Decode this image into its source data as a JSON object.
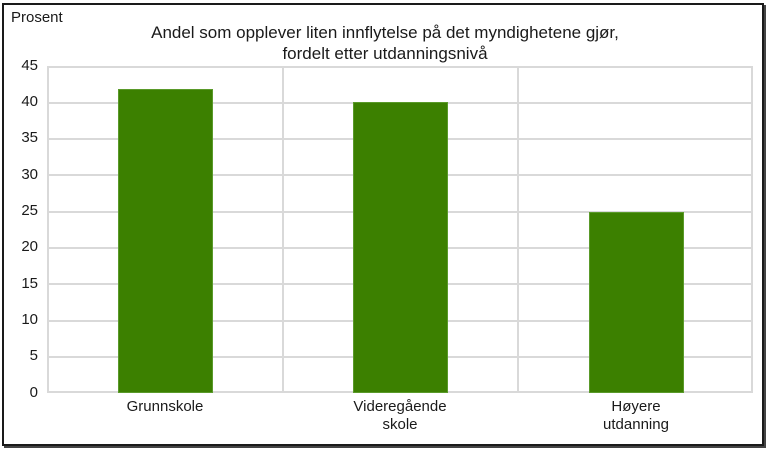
{
  "chart_data": {
    "type": "bar",
    "title": "Andel som opplever liten innflytelse på det myndighetene gjør, fordelt etter utdanningsnivå",
    "title_lines": [
      "Andel som opplever liten innflytelse på det myndighetene gjør,",
      "fordelt etter utdanningsnivå"
    ],
    "xlabel": "",
    "ylabel": "Prosent",
    "categories": [
      "Grunnskole",
      "Videregående skole",
      "Høyere utdanning"
    ],
    "category_lines": [
      [
        "Grunnskole"
      ],
      [
        "Videregående",
        "skole"
      ],
      [
        "Høyere",
        "utdanning"
      ]
    ],
    "values": [
      41.8,
      40.0,
      24.9
    ],
    "ylim": [
      0,
      45
    ],
    "yticks": [
      "45",
      "40",
      "35",
      "30",
      "25",
      "20",
      "15",
      "10",
      "5",
      "0"
    ],
    "grid": true,
    "legend": null,
    "bar_color": "#3c8000"
  }
}
